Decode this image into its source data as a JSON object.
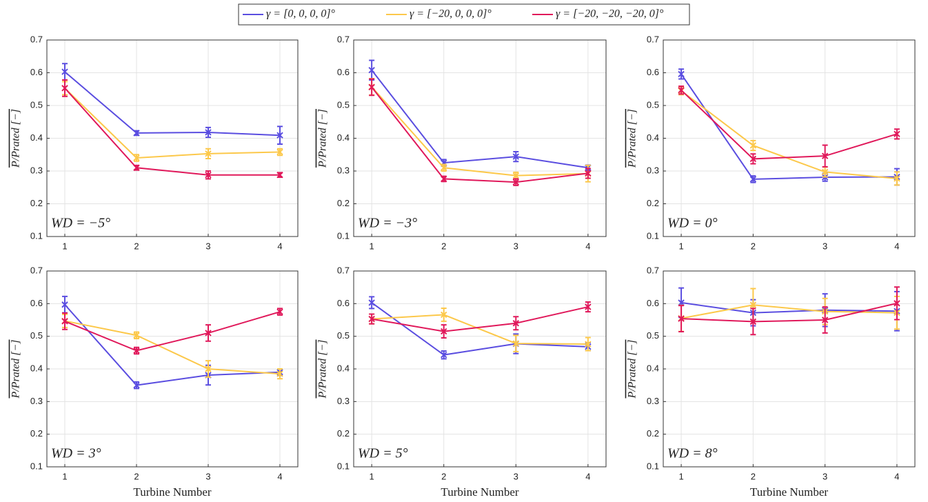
{
  "chart_data": [
    {
      "type": "line",
      "annotation": "WD = −5°",
      "ylabel": "P/Prated [−]",
      "x": [
        1,
        2,
        3,
        4
      ],
      "xlim": [
        0.75,
        4.25
      ],
      "xticks": [
        1,
        2,
        3,
        4
      ],
      "ylim": [
        0.1,
        0.7
      ],
      "yticks": [
        0.1,
        0.2,
        0.3,
        0.4,
        0.5,
        0.6,
        0.7
      ],
      "grid": true,
      "series": [
        {
          "name": "γ = [0, 0, 0, 0]°",
          "color": "#5a4de0",
          "values": [
            0.603,
            0.416,
            0.418,
            0.409
          ],
          "errors": [
            0.025,
            0.007,
            0.015,
            0.027
          ]
        },
        {
          "name": "γ = [−20, 0, 0, 0]°",
          "color": "#fcc84a",
          "values": [
            0.553,
            0.34,
            0.353,
            0.358
          ],
          "errors": [
            0.02,
            0.01,
            0.015,
            0.01
          ]
        },
        {
          "name": "γ = [−20, −20, −20, 0]°",
          "color": "#e0185a",
          "values": [
            0.553,
            0.31,
            0.288,
            0.288
          ],
          "errors": [
            0.025,
            0.007,
            0.012,
            0.007
          ]
        }
      ]
    },
    {
      "type": "line",
      "annotation": "WD = −3°",
      "ylabel": "P/Prated [−]",
      "x": [
        1,
        2,
        3,
        4
      ],
      "xlim": [
        0.75,
        4.25
      ],
      "xticks": [
        1,
        2,
        3,
        4
      ],
      "ylim": [
        0.1,
        0.7
      ],
      "yticks": [
        0.1,
        0.2,
        0.3,
        0.4,
        0.5,
        0.6,
        0.7
      ],
      "grid": true,
      "series": [
        {
          "color": "#5a4de0",
          "values": [
            0.608,
            0.325,
            0.344,
            0.31
          ],
          "errors": [
            0.03,
            0.01,
            0.015,
            0.008
          ]
        },
        {
          "color": "#fcc84a",
          "values": [
            0.557,
            0.31,
            0.286,
            0.292
          ],
          "errors": [
            0.025,
            0.01,
            0.01,
            0.025
          ]
        },
        {
          "color": "#e0185a",
          "values": [
            0.556,
            0.276,
            0.266,
            0.293
          ],
          "errors": [
            0.025,
            0.008,
            0.01,
            0.015
          ]
        }
      ]
    },
    {
      "type": "line",
      "annotation": "WD = 0°",
      "ylabel": "P/Prated [−]",
      "x": [
        1,
        2,
        3,
        4
      ],
      "xlim": [
        0.75,
        4.25
      ],
      "xticks": [
        1,
        2,
        3,
        4
      ],
      "ylim": [
        0.1,
        0.7
      ],
      "yticks": [
        0.1,
        0.2,
        0.3,
        0.4,
        0.5,
        0.6,
        0.7
      ],
      "grid": true,
      "series": [
        {
          "color": "#5a4de0",
          "values": [
            0.596,
            0.275,
            0.281,
            0.282
          ],
          "errors": [
            0.015,
            0.01,
            0.012,
            0.025
          ]
        },
        {
          "color": "#fcc84a",
          "values": [
            0.545,
            0.378,
            0.297,
            0.277
          ],
          "errors": [
            0.012,
            0.015,
            0.015,
            0.02
          ]
        },
        {
          "color": "#e0185a",
          "values": [
            0.547,
            0.337,
            0.346,
            0.413
          ],
          "errors": [
            0.012,
            0.015,
            0.033,
            0.015
          ]
        }
      ]
    },
    {
      "type": "line",
      "annotation": "WD = 3°",
      "ylabel": "P/Prated [−]",
      "xlabel": "Turbine Number",
      "x": [
        1,
        2,
        3,
        4
      ],
      "xlim": [
        0.75,
        4.25
      ],
      "xticks": [
        1,
        2,
        3,
        4
      ],
      "ylim": [
        0.1,
        0.7
      ],
      "yticks": [
        0.1,
        0.2,
        0.3,
        0.4,
        0.5,
        0.6,
        0.7
      ],
      "grid": true,
      "series": [
        {
          "color": "#5a4de0",
          "values": [
            0.597,
            0.35,
            0.381,
            0.39
          ],
          "errors": [
            0.025,
            0.01,
            0.03,
            0.01
          ]
        },
        {
          "color": "#fcc84a",
          "values": [
            0.547,
            0.503,
            0.4,
            0.385
          ],
          "errors": [
            0.02,
            0.01,
            0.025,
            0.015
          ]
        },
        {
          "color": "#e0185a",
          "values": [
            0.546,
            0.456,
            0.51,
            0.575
          ],
          "errors": [
            0.025,
            0.01,
            0.025,
            0.01
          ]
        }
      ]
    },
    {
      "type": "line",
      "annotation": "WD = 5°",
      "ylabel": "P/Prated [−]",
      "xlabel": "Turbine Number",
      "x": [
        1,
        2,
        3,
        4
      ],
      "xlim": [
        0.75,
        4.25
      ],
      "xticks": [
        1,
        2,
        3,
        4
      ],
      "ylim": [
        0.1,
        0.7
      ],
      "yticks": [
        0.1,
        0.2,
        0.3,
        0.4,
        0.5,
        0.6,
        0.7
      ],
      "grid": true,
      "series": [
        {
          "color": "#5a4de0",
          "values": [
            0.603,
            0.443,
            0.477,
            0.468
          ],
          "errors": [
            0.018,
            0.012,
            0.03,
            0.012
          ]
        },
        {
          "color": "#fcc84a",
          "values": [
            0.553,
            0.566,
            0.478,
            0.476
          ],
          "errors": [
            0.015,
            0.02,
            0.025,
            0.02
          ]
        },
        {
          "color": "#e0185a",
          "values": [
            0.553,
            0.515,
            0.54,
            0.59
          ],
          "errors": [
            0.015,
            0.02,
            0.02,
            0.015
          ]
        }
      ]
    },
    {
      "type": "line",
      "annotation": "WD = 8°",
      "ylabel": "P/Prated [−]",
      "xlabel": "Turbine Number",
      "x": [
        1,
        2,
        3,
        4
      ],
      "xlim": [
        0.75,
        4.25
      ],
      "xticks": [
        1,
        2,
        3,
        4
      ],
      "ylim": [
        0.1,
        0.7
      ],
      "yticks": [
        0.1,
        0.2,
        0.3,
        0.4,
        0.5,
        0.6,
        0.7
      ],
      "grid": true,
      "series": [
        {
          "color": "#5a4de0",
          "values": [
            0.603,
            0.572,
            0.58,
            0.577
          ],
          "errors": [
            0.045,
            0.04,
            0.05,
            0.06
          ]
        },
        {
          "color": "#fcc84a",
          "values": [
            0.555,
            0.596,
            0.576,
            0.572
          ],
          "errors": [
            0.04,
            0.05,
            0.04,
            0.05
          ]
        },
        {
          "color": "#e0185a",
          "values": [
            0.554,
            0.545,
            0.55,
            0.601
          ],
          "errors": [
            0.04,
            0.04,
            0.04,
            0.05
          ]
        }
      ]
    }
  ]
}
